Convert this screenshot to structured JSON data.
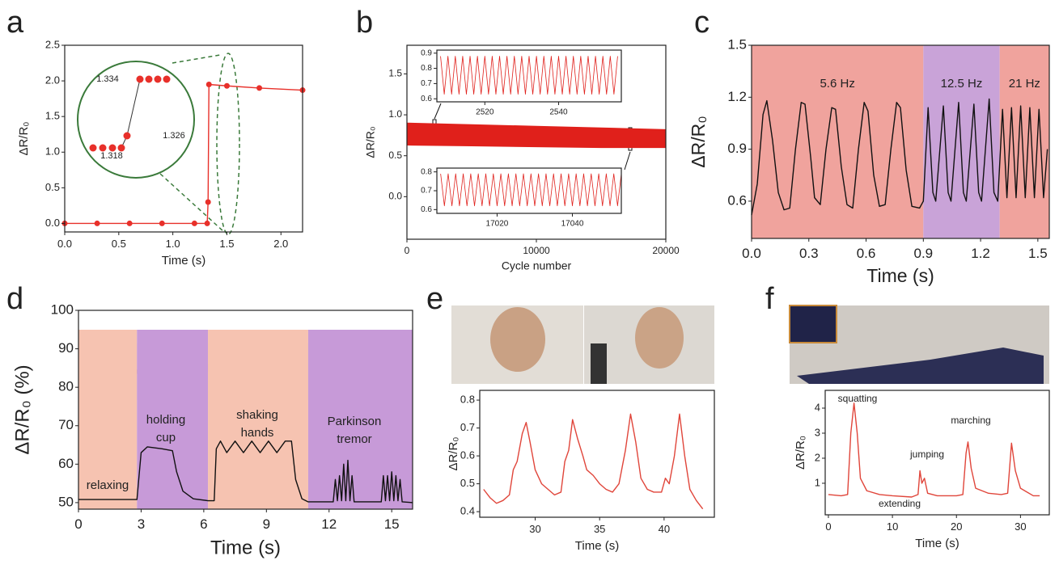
{
  "chart_data": [
    {
      "type": "line",
      "panel": "a",
      "xlabel": "Time (s)",
      "ylabel": "ΔR/R₀",
      "color": "#e8302a",
      "x": [
        0,
        0.3,
        0.6,
        0.9,
        1.2,
        1.318,
        1.326,
        1.334,
        1.5,
        1.8,
        2.2
      ],
      "series": [
        {
          "color": "#e8302a",
          "marker": true,
          "values": [
            0,
            0,
            0,
            0,
            0,
            0,
            0.3,
            1.95,
            1.93,
            1.9,
            1.87
          ]
        }
      ],
      "annotations": [
        "1.334",
        "1.326",
        "1.318"
      ],
      "xlim": [
        0,
        2.2
      ],
      "xticks": [
        {
          "value": 0,
          "label": "0.0"
        },
        0.5,
        {
          "value": 1,
          "label": "1.0"
        },
        1.5,
        {
          "value": 2,
          "label": "2.0"
        }
      ],
      "ylim": [
        -0.12,
        2.5
      ],
      "yticks": [
        {
          "value": 0,
          "label": "0.0"
        },
        0.5,
        {
          "value": 1,
          "label": "1.0"
        },
        1.5,
        {
          "value": 2,
          "label": "2.0"
        },
        2.5
      ]
    },
    {
      "type": "area",
      "panel": "b",
      "xlabel": "Cycle number",
      "ylabel": "ΔR/R₀",
      "x": [
        0,
        5000,
        10000,
        15000,
        20000
      ],
      "series": [
        {
          "color": "#e0201b",
          "values": [
            0.9,
            0.88,
            0.86,
            0.84,
            0.82
          ]
        },
        {
          "color": "#e0201b",
          "values": [
            0.63,
            0.62,
            0.61,
            0.6,
            0.6
          ]
        }
      ],
      "xlim": [
        0,
        20000
      ],
      "xticks": [
        0,
        10000,
        20000
      ],
      "ylim": [
        -0.52,
        1.85
      ],
      "yticks": [
        {
          "value": 0,
          "label": "0.0"
        },
        0.5,
        {
          "value": 1,
          "label": "1.0"
        },
        1.5
      ]
    },
    {
      "type": "line",
      "x": [
        2508,
        2509,
        2510,
        2511,
        2512,
        2513,
        2514,
        2515,
        2516,
        2517,
        2518,
        2519,
        2520,
        2521,
        2522,
        2523,
        2524,
        2525,
        2526,
        2527,
        2528,
        2529,
        2530,
        2531,
        2532,
        2533,
        2534,
        2535,
        2536,
        2537,
        2538,
        2539,
        2540,
        2541,
        2542,
        2543,
        2544,
        2545,
        2546,
        2547,
        2548,
        2549,
        2550,
        2551,
        2552,
        2553,
        2554,
        2555,
        2556
      ],
      "series": [
        {
          "color": "#e0201b",
          "values": [
            0.88,
            0.63,
            0.88,
            0.63,
            0.88,
            0.63,
            0.88,
            0.63,
            0.88,
            0.63,
            0.88,
            0.63,
            0.88,
            0.63,
            0.88,
            0.63,
            0.88,
            0.63,
            0.88,
            0.63,
            0.88,
            0.63,
            0.88,
            0.63,
            0.88,
            0.63,
            0.88,
            0.63,
            0.88,
            0.63,
            0.88,
            0.63,
            0.88,
            0.63,
            0.88,
            0.63,
            0.88,
            0.63,
            0.88,
            0.63,
            0.88,
            0.63,
            0.88,
            0.63,
            0.88,
            0.63,
            0.88,
            0.63,
            0.88
          ]
        }
      ],
      "xlim": [
        2507,
        2557
      ],
      "xticks": [
        2520,
        2540
      ],
      "ylim": [
        0.58,
        0.92
      ],
      "yticks": [
        0.6,
        0.7,
        0.8,
        0.9
      ]
    },
    {
      "type": "line",
      "x": [
        17005,
        17006,
        17007,
        17008,
        17009,
        17010,
        17011,
        17012,
        17013,
        17014,
        17015,
        17016,
        17017,
        17018,
        17019,
        17020,
        17021,
        17022,
        17023,
        17024,
        17025,
        17026,
        17027,
        17028,
        17029,
        17030,
        17031,
        17032,
        17033,
        17034,
        17035,
        17036,
        17037,
        17038,
        17039,
        17040,
        17041,
        17042,
        17043,
        17044,
        17045,
        17046,
        17047,
        17048,
        17049,
        17050,
        17051,
        17052,
        17053
      ],
      "series": [
        {
          "color": "#e0201b",
          "values": [
            0.79,
            0.62,
            0.79,
            0.62,
            0.79,
            0.62,
            0.79,
            0.62,
            0.79,
            0.62,
            0.79,
            0.62,
            0.79,
            0.62,
            0.79,
            0.62,
            0.79,
            0.62,
            0.79,
            0.62,
            0.79,
            0.62,
            0.79,
            0.62,
            0.79,
            0.62,
            0.79,
            0.62,
            0.79,
            0.62,
            0.79,
            0.62,
            0.79,
            0.62,
            0.79,
            0.62,
            0.79,
            0.62,
            0.79,
            0.62,
            0.79,
            0.62,
            0.79,
            0.62,
            0.79,
            0.62,
            0.79,
            0.62,
            0.79
          ]
        }
      ],
      "xlim": [
        17004,
        17053
      ],
      "xticks": [
        17020,
        17040
      ],
      "ylim": [
        0.58,
        0.82
      ],
      "yticks": [
        0.6,
        0.7,
        0.8
      ]
    },
    {
      "type": "line",
      "panel": "c",
      "xlabel": "Time (s)",
      "ylabel": "ΔR/R₀",
      "regions": [
        {
          "label": "5.6 Hz",
          "start": 0,
          "end": 0.9,
          "color": "#f0a39d"
        },
        {
          "label": "12.5 Hz",
          "start": 0.9,
          "end": 1.3,
          "color": "#c9a3d8"
        },
        {
          "label": "21 Hz",
          "start": 1.3,
          "end": 1.56,
          "color": "#f0a39d"
        }
      ],
      "x": [
        0,
        0.03,
        0.06,
        0.08,
        0.11,
        0.14,
        0.17,
        0.2,
        0.23,
        0.26,
        0.28,
        0.31,
        0.33,
        0.36,
        0.39,
        0.42,
        0.44,
        0.47,
        0.5,
        0.53,
        0.56,
        0.59,
        0.61,
        0.64,
        0.67,
        0.7,
        0.73,
        0.76,
        0.78,
        0.81,
        0.84,
        0.88,
        0.9,
        0.925,
        0.95,
        0.965,
        1.005,
        1.03,
        1.045,
        1.085,
        1.11,
        1.125,
        1.165,
        1.19,
        1.205,
        1.245,
        1.27,
        1.29,
        1.315,
        1.338,
        1.362,
        1.386,
        1.41,
        1.434,
        1.458,
        1.482,
        1.506,
        1.53,
        1.55
      ],
      "series": [
        {
          "color": "#111111",
          "values": [
            0.52,
            0.7,
            1.1,
            1.18,
            0.95,
            0.65,
            0.55,
            0.56,
            0.9,
            1.17,
            1.16,
            0.85,
            0.62,
            0.58,
            0.9,
            1.14,
            1.13,
            0.8,
            0.58,
            0.56,
            0.9,
            1.17,
            1.12,
            0.75,
            0.57,
            0.58,
            0.9,
            1.17,
            1.14,
            0.78,
            0.57,
            0.56,
            0.6,
            1.14,
            0.65,
            0.6,
            1.15,
            0.65,
            0.6,
            1.17,
            0.65,
            0.6,
            1.16,
            0.65,
            0.6,
            1.19,
            0.65,
            0.6,
            1.13,
            0.62,
            1.14,
            0.62,
            1.15,
            0.62,
            1.14,
            0.62,
            1.13,
            0.62,
            0.9
          ]
        }
      ],
      "xlim": [
        0,
        1.56
      ],
      "xticks": [
        {
          "value": 0,
          "label": "0.0"
        },
        0.3,
        0.6,
        0.9,
        1.2,
        1.5
      ],
      "ylim": [
        0.385,
        1.5
      ],
      "yticks": [
        0.6,
        0.9,
        1.2,
        1.5
      ]
    },
    {
      "type": "line",
      "panel": "d",
      "xlabel": "Time (s)",
      "ylabel": "ΔR/R₀ (%)",
      "regions": [
        {
          "label": "relaxing",
          "start": 0,
          "end": 2.8,
          "color": "#f6c3b1"
        },
        {
          "label": "holding cup",
          "start": 2.8,
          "end": 6.2,
          "color": "#c79ad8"
        },
        {
          "label": "shaking hands",
          "start": 6.2,
          "end": 11,
          "color": "#f6c3b1"
        },
        {
          "label": "Parkinson tremor",
          "start": 11,
          "end": 16,
          "color": "#c79ad8"
        }
      ],
      "x": [
        0,
        2.8,
        3,
        3.3,
        4,
        4.5,
        4.7,
        5,
        5.5,
        6.2,
        6.5,
        6.6,
        6.8,
        7.1,
        7.5,
        7.9,
        8.3,
        8.7,
        9.1,
        9.5,
        9.9,
        10.2,
        10.4,
        10.7,
        11,
        12.2,
        12.3,
        12.4,
        12.5,
        12.6,
        12.7,
        12.8,
        12.9,
        13,
        13.1,
        13.2,
        14.5,
        14.6,
        14.7,
        14.8,
        14.9,
        15,
        15.1,
        15.2,
        15.3,
        15.4,
        15.5,
        16
      ],
      "series": [
        {
          "color": "#111111",
          "values": [
            50.8,
            50.8,
            63,
            64.5,
            64,
            63.5,
            58,
            53,
            51,
            50.5,
            50.5,
            64,
            66,
            63,
            66,
            63,
            66,
            63,
            66,
            63,
            66,
            66,
            56,
            51,
            50.2,
            50.2,
            56,
            50.5,
            57,
            50.5,
            60,
            50.5,
            61,
            50.5,
            57,
            50.2,
            50.2,
            57,
            50.5,
            57,
            50.5,
            58,
            50.5,
            57,
            50.5,
            56,
            50.2,
            50
          ]
        }
      ],
      "xlim": [
        0,
        16
      ],
      "xticks": [
        0,
        3,
        6,
        9,
        12,
        15
      ],
      "ylim": [
        48.3,
        100
      ],
      "yticks": [
        50,
        60,
        70,
        80,
        90,
        100
      ]
    },
    {
      "type": "line",
      "panel": "e",
      "xlabel": "Time (s)",
      "ylabel": "ΔR/R₀",
      "x": [
        26,
        26.5,
        27,
        27.5,
        28,
        28.3,
        28.6,
        29,
        29.3,
        29.6,
        30,
        30.5,
        31,
        31.5,
        32,
        32.3,
        32.6,
        32.9,
        33.3,
        33.7,
        34,
        34.5,
        35,
        35.5,
        36,
        36.5,
        37,
        37.4,
        37.8,
        38.2,
        38.7,
        39.2,
        39.8,
        40.1,
        40.4,
        40.8,
        41.2,
        41.6,
        42,
        42.5,
        43
      ],
      "series": [
        {
          "color": "#e0453a",
          "values": [
            0.48,
            0.45,
            0.43,
            0.44,
            0.46,
            0.55,
            0.58,
            0.68,
            0.72,
            0.65,
            0.55,
            0.5,
            0.48,
            0.46,
            0.47,
            0.58,
            0.62,
            0.73,
            0.66,
            0.6,
            0.55,
            0.53,
            0.5,
            0.48,
            0.47,
            0.5,
            0.62,
            0.75,
            0.65,
            0.52,
            0.48,
            0.47,
            0.47,
            0.52,
            0.5,
            0.6,
            0.75,
            0.6,
            0.48,
            0.44,
            0.41
          ]
        }
      ],
      "xlim": [
        25.7,
        43.9
      ],
      "xticks": [
        30,
        35,
        40
      ],
      "ylim": [
        0.38,
        0.835
      ],
      "yticks": [
        0.4,
        0.5,
        0.6,
        0.7,
        0.8
      ]
    },
    {
      "type": "line",
      "panel": "f",
      "xlabel": "Time (s)",
      "ylabel": "ΔR/R₀",
      "annotations": [
        "squatting",
        "jumping",
        "extending",
        "marching"
      ],
      "x": [
        0,
        2,
        3,
        3.5,
        4,
        4.5,
        5,
        6,
        8,
        10,
        13,
        14,
        14.3,
        14.6,
        15,
        15.5,
        17,
        20,
        21,
        21.5,
        21.8,
        22.3,
        23,
        25,
        27,
        28,
        28.6,
        29.2,
        30,
        32,
        33
      ],
      "series": [
        {
          "color": "#e0453a",
          "values": [
            0.55,
            0.5,
            0.55,
            3,
            4.2,
            3,
            1.2,
            0.7,
            0.55,
            0.5,
            0.45,
            0.55,
            1.5,
            1,
            1.2,
            0.6,
            0.5,
            0.5,
            0.55,
            2.2,
            2.65,
            1.6,
            0.8,
            0.6,
            0.55,
            0.6,
            2.6,
            1.5,
            0.8,
            0.5,
            0.5
          ]
        }
      ],
      "xlim": [
        -0.5,
        34.5
      ],
      "xticks": [
        0,
        10,
        20,
        30
      ],
      "ylim": [
        -0.26,
        4.71
      ],
      "yticks": [
        1,
        2,
        3,
        4
      ]
    }
  ]
}
